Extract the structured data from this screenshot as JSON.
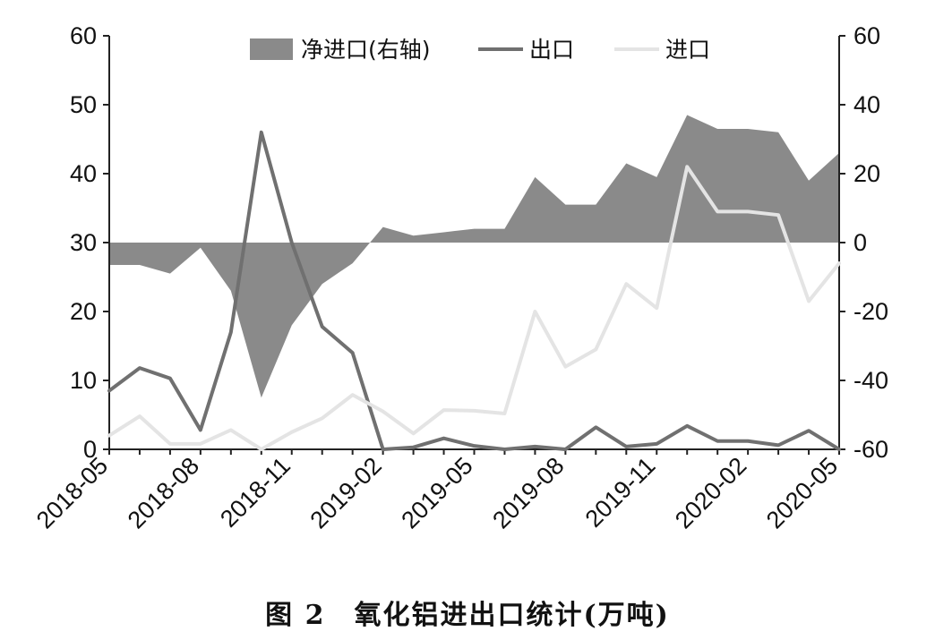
{
  "caption": "图 2　氧化铝进出口统计(万吨)",
  "chart_data": {
    "type": "line",
    "x": [
      "2018-05",
      "2018-06",
      "2018-07",
      "2018-08",
      "2018-09",
      "2018-10",
      "2018-11",
      "2018-12",
      "2019-01",
      "2019-02",
      "2019-03",
      "2019-04",
      "2019-05",
      "2019-06",
      "2019-07",
      "2019-08",
      "2019-09",
      "2019-10",
      "2019-11",
      "2019-12",
      "2020-01",
      "2020-02",
      "2020-03",
      "2020-04",
      "2020-05"
    ],
    "x_tick_labels": [
      "2018-05",
      "2018-08",
      "2018-11",
      "2019-02",
      "2019-05",
      "2019-08",
      "2019-11",
      "2020-02",
      "2020-05"
    ],
    "y_left": {
      "ylim": [
        0,
        60
      ],
      "ticks": [
        0,
        10,
        20,
        30,
        40,
        50,
        60
      ]
    },
    "y_right": {
      "ylim": [
        -60,
        60
      ],
      "ticks": [
        -60,
        -40,
        -20,
        0,
        20,
        40,
        60
      ]
    },
    "legend_placement": "top",
    "series": [
      {
        "name": "净进口(右轴)",
        "kind": "area",
        "axis": "right",
        "color": "#8a8a8a",
        "values": [
          -6.5,
          -6.5,
          -9,
          -1.5,
          -14,
          -45,
          -24,
          -12,
          -6,
          4.5,
          2,
          3,
          4,
          4,
          19,
          11,
          11,
          23,
          19,
          37,
          33,
          33,
          32,
          18,
          26
        ]
      },
      {
        "name": "出口",
        "kind": "line",
        "axis": "left",
        "color": "#707070",
        "values": [
          8.5,
          11.8,
          10.3,
          2.8,
          17,
          46,
          30,
          17.8,
          14,
          0,
          0.3,
          1.6,
          0.5,
          0,
          0.4,
          0,
          3.2,
          0.4,
          0.8,
          3.4,
          1.2,
          1.2,
          0.6,
          2.7,
          0
        ]
      },
      {
        "name": "进口",
        "kind": "line",
        "axis": "left",
        "color": "#e4e4e4",
        "values": [
          2,
          4.8,
          0.8,
          0.8,
          2.8,
          0,
          2.5,
          4.5,
          7.9,
          5.5,
          2.3,
          5.7,
          5.6,
          5.2,
          20,
          12,
          14.5,
          24,
          20.5,
          41,
          34.5,
          34.5,
          34,
          21.5,
          27
        ]
      }
    ]
  }
}
